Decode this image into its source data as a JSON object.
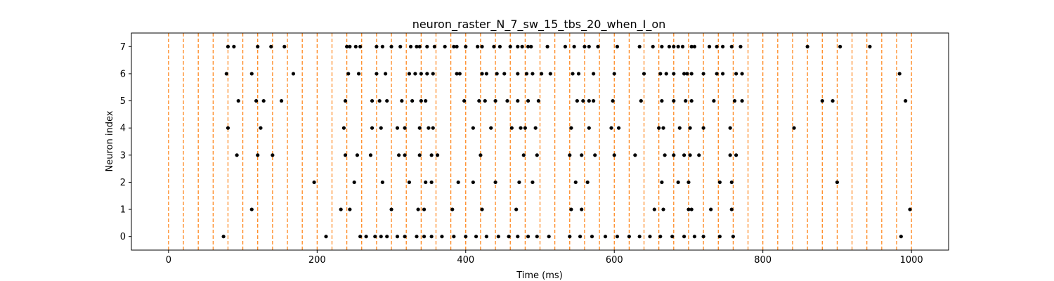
{
  "chart_data": {
    "type": "scatter",
    "title": "neuron_raster_N_7_sw_15_tbs_20_when_I_on",
    "xlabel": "Time (ms)",
    "ylabel": "Neuron index",
    "xlim": [
      -50,
      1050
    ],
    "ylim": [
      -0.5,
      7.5
    ],
    "xticks": [
      0,
      200,
      400,
      600,
      800,
      1000
    ],
    "yticks": [
      0,
      1,
      2,
      3,
      4,
      5,
      6,
      7
    ],
    "grid": false,
    "marker_color": "#000000",
    "vline_color": "#ff7f0e",
    "vline_style": "dashed",
    "vlines_x": [
      0,
      20,
      40,
      60,
      80,
      100,
      120,
      140,
      160,
      180,
      200,
      220,
      240,
      260,
      280,
      300,
      320,
      340,
      360,
      380,
      400,
      420,
      440,
      460,
      480,
      500,
      520,
      540,
      560,
      580,
      600,
      620,
      640,
      660,
      680,
      700,
      720,
      740,
      760,
      780,
      800,
      820,
      840,
      860,
      880,
      900,
      920,
      940,
      960,
      980,
      1000
    ],
    "series": [
      {
        "neuron": 0,
        "x": [
          74,
          212,
          258,
          266,
          278,
          286,
          294,
          308,
          318,
          334,
          344,
          354,
          368,
          384,
          400,
          414,
          428,
          444,
          458,
          470,
          484,
          496,
          512,
          540,
          554,
          570,
          588,
          604,
          620,
          634,
          648,
          662,
          678,
          694,
          708,
          720,
          742,
          760,
          986
        ]
      },
      {
        "neuron": 1,
        "x": [
          112,
          232,
          244,
          300,
          336,
          344,
          382,
          422,
          468,
          542,
          556,
          654,
          666,
          700,
          704,
          730,
          758,
          998
        ]
      },
      {
        "neuron": 2,
        "x": [
          196,
          250,
          288,
          324,
          346,
          354,
          390,
          410,
          440,
          472,
          490,
          548,
          564,
          664,
          686,
          700,
          742,
          758,
          900
        ]
      },
      {
        "neuron": 3,
        "x": [
          92,
          120,
          140,
          238,
          254,
          272,
          310,
          318,
          338,
          354,
          362,
          420,
          478,
          496,
          540,
          556,
          574,
          600,
          628,
          668,
          680,
          694,
          702,
          714,
          756,
          764
        ]
      },
      {
        "neuron": 4,
        "x": [
          80,
          124,
          236,
          274,
          286,
          308,
          318,
          338,
          350,
          356,
          410,
          434,
          462,
          474,
          480,
          494,
          542,
          566,
          596,
          606,
          660,
          666,
          688,
          702,
          720,
          756,
          842
        ]
      },
      {
        "neuron": 5,
        "x": [
          94,
          118,
          128,
          152,
          238,
          274,
          284,
          294,
          314,
          328,
          340,
          346,
          398,
          418,
          426,
          440,
          456,
          470,
          484,
          498,
          550,
          558,
          566,
          572,
          598,
          636,
          664,
          680,
          696,
          704,
          734,
          762,
          772,
          880,
          894,
          992
        ]
      },
      {
        "neuron": 6,
        "x": [
          78,
          112,
          168,
          242,
          256,
          280,
          292,
          324,
          332,
          340,
          348,
          356,
          388,
          392,
          422,
          428,
          442,
          452,
          470,
          482,
          490,
          502,
          514,
          544,
          552,
          572,
          600,
          640,
          662,
          670,
          680,
          694,
          698,
          704,
          720,
          738,
          746,
          764,
          772,
          984
        ]
      },
      {
        "neuron": 7,
        "x": [
          80,
          88,
          120,
          138,
          156,
          240,
          244,
          252,
          258,
          280,
          288,
          300,
          312,
          326,
          334,
          338,
          348,
          358,
          372,
          384,
          388,
          400,
          416,
          422,
          438,
          446,
          460,
          470,
          476,
          484,
          488,
          510,
          534,
          546,
          560,
          566,
          578,
          604,
          634,
          652,
          664,
          674,
          680,
          686,
          692,
          704,
          708,
          728,
          738,
          746,
          758,
          770,
          860,
          904,
          944
        ]
      }
    ]
  }
}
